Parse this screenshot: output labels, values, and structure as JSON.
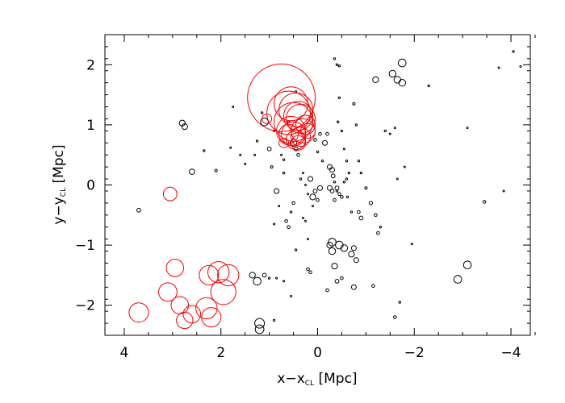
{
  "chart_data": {
    "type": "scatter",
    "title": "",
    "xlabel": {
      "main": "x−x",
      "sub": "CL",
      "unit": " [Mpc]"
    },
    "ylabel": {
      "main": "y−y",
      "sub": "CL",
      "unit": " [Mpc]"
    },
    "xlim": [
      4.4,
      -4.4
    ],
    "ylim": [
      -2.5,
      2.5
    ],
    "x_ticks": [
      4,
      2,
      0,
      -2,
      -4
    ],
    "x_tick_labels": [
      "4",
      "2",
      "0",
      "−2",
      "−4"
    ],
    "y_ticks": [
      -2,
      -1,
      0,
      1,
      2
    ],
    "y_tick_labels": [
      "−2",
      "−1",
      "0",
      "1",
      "2"
    ],
    "grid": false,
    "legend": "none",
    "colors": {
      "black_series": "#000000",
      "red_series": "#ff0000"
    },
    "series": [
      {
        "color": "#000000",
        "points": [
          [
            3.7,
            -0.42,
            0.04
          ],
          [
            2.8,
            1.03,
            0.06
          ],
          [
            2.75,
            0.97,
            0.06
          ],
          [
            2.6,
            0.22,
            0.055
          ],
          [
            2.35,
            0.57,
            0.02
          ],
          [
            2.1,
            0.24,
            0.025
          ],
          [
            1.8,
            0.62,
            0.01
          ],
          [
            1.75,
            1.3,
            0.01
          ],
          [
            1.6,
            0.5,
            0.01
          ],
          [
            1.5,
            0.35,
            0.01
          ],
          [
            1.3,
            0.5,
            0.01
          ],
          [
            1.15,
            1.2,
            0.02
          ],
          [
            1.0,
            0.6,
            0.04
          ],
          [
            0.95,
            0.3,
            0.025
          ],
          [
            0.9,
            0.9,
            0.015
          ],
          [
            0.85,
            -0.1,
            0.05
          ],
          [
            0.8,
            -0.35,
            0.01
          ],
          [
            0.75,
            0.5,
            0.01
          ],
          [
            0.7,
            0.2,
            0.02
          ],
          [
            0.65,
            -0.6,
            0.03
          ],
          [
            0.6,
            -0.7,
            0.03
          ],
          [
            0.55,
            -0.45,
            0.02
          ],
          [
            0.5,
            -0.3,
            0.03
          ],
          [
            0.45,
            -1.08,
            0.02
          ],
          [
            0.5,
            0.7,
            0.07
          ],
          [
            0.45,
            0.6,
            0.04
          ],
          [
            0.4,
            0.5,
            0.03
          ],
          [
            0.35,
            0.1,
            0.02
          ],
          [
            0.3,
            0.2,
            0.01
          ],
          [
            0.25,
            0.0,
            0.01
          ],
          [
            0.2,
            -0.15,
            0.01
          ],
          [
            0.15,
            0.1,
            0.05
          ],
          [
            0.1,
            -0.2,
            0.06
          ],
          [
            0.05,
            -0.1,
            0.04
          ],
          [
            0.0,
            -0.25,
            0.03
          ],
          [
            -0.05,
            -0.05,
            0.05
          ],
          [
            -0.1,
            0.4,
            0.02
          ],
          [
            -0.15,
            0.7,
            0.05
          ],
          [
            -0.2,
            0.85,
            0.03
          ],
          [
            -0.25,
            0.3,
            0.05
          ],
          [
            -0.3,
            0.25,
            0.05
          ],
          [
            -0.32,
            0.15,
            0.04
          ],
          [
            -0.35,
            0.05,
            0.02
          ],
          [
            -0.4,
            -0.1,
            0.02
          ],
          [
            -0.42,
            1.05,
            0.02
          ],
          [
            -0.45,
            1.45,
            0.02
          ],
          [
            -0.5,
            0.9,
            0.02
          ],
          [
            -0.55,
            0.6,
            0.015
          ],
          [
            -0.6,
            0.4,
            0.02
          ],
          [
            -0.62,
            -0.2,
            0.02
          ],
          [
            -0.65,
            0.2,
            0.02
          ],
          [
            -0.7,
            -0.45,
            0.02
          ],
          [
            -0.3,
            -0.1,
            0.04
          ],
          [
            -0.25,
            -0.05,
            0.05
          ],
          [
            -0.35,
            -0.25,
            0.03
          ],
          [
            -0.4,
            -0.05,
            0.04
          ],
          [
            -0.45,
            -0.15,
            0.03
          ],
          [
            -0.5,
            -0.2,
            0.03
          ],
          [
            -0.55,
            0.05,
            0.02
          ],
          [
            -0.6,
            0.1,
            0.02
          ],
          [
            -0.75,
            1.35,
            0.025
          ],
          [
            -0.8,
            1.0,
            0.02
          ],
          [
            -0.85,
            0.4,
            0.02
          ],
          [
            -0.9,
            0.2,
            0.02
          ],
          [
            -1.0,
            -0.05,
            0.025
          ],
          [
            -1.1,
            -0.3,
            0.035
          ],
          [
            -1.2,
            -0.5,
            0.03
          ],
          [
            -1.25,
            -0.8,
            0.03
          ],
          [
            -1.3,
            -0.7,
            0.02
          ],
          [
            -1.4,
            0.9,
            0.02
          ],
          [
            -1.5,
            0.85,
            0.01
          ],
          [
            -1.6,
            0.95,
            0.01
          ],
          [
            -1.65,
            0.1,
            0.01
          ],
          [
            -1.8,
            0.3,
            0.01
          ],
          [
            -0.3,
            -0.95,
            0.08
          ],
          [
            -0.45,
            -1.0,
            0.08
          ],
          [
            -0.55,
            -1.05,
            0.07
          ],
          [
            -0.7,
            -1.15,
            0.06
          ],
          [
            -0.75,
            -1.05,
            0.05
          ],
          [
            -0.8,
            -1.25,
            0.05
          ],
          [
            -0.3,
            -1.1,
            0.07
          ],
          [
            -0.25,
            -1.0,
            0.06
          ],
          [
            -0.35,
            -1.35,
            0.06
          ],
          [
            -0.75,
            -1.7,
            0.05
          ],
          [
            -0.4,
            -1.6,
            0.04
          ],
          [
            -0.5,
            -1.55,
            0.03
          ],
          [
            -0.2,
            -1.75,
            0.03
          ],
          [
            0.2,
            -1.4,
            0.03
          ],
          [
            0.15,
            -1.45,
            0.03
          ],
          [
            -0.9,
            -0.55,
            0.04
          ],
          [
            -0.85,
            -0.45,
            0.03
          ],
          [
            0.45,
            1.55,
            0.02
          ],
          [
            1.0,
            -1.55,
            0.02
          ],
          [
            0.85,
            -1.55,
            0.015
          ],
          [
            0.7,
            -1.6,
            0.01
          ],
          [
            0.55,
            -1.85,
            0.01
          ],
          [
            1.1,
            -1.5,
            0.04
          ],
          [
            1.25,
            -1.6,
            0.08
          ],
          [
            1.35,
            -1.5,
            0.06
          ],
          [
            1.2,
            -2.3,
            0.1
          ],
          [
            1.2,
            -2.4,
            0.09
          ],
          [
            0.9,
            -2.25,
            0.02
          ],
          [
            -1.15,
            -1.68,
            0.03
          ],
          [
            -1.6,
            -2.2,
            0.03
          ],
          [
            -1.7,
            -1.95,
            0.02
          ],
          [
            -0.35,
            2.1,
            0.02
          ],
          [
            -0.4,
            2.0,
            0.02
          ],
          [
            -0.45,
            1.98,
            0.02
          ],
          [
            -1.2,
            1.75,
            0.06
          ],
          [
            -1.55,
            1.85,
            0.07
          ],
          [
            -1.65,
            1.75,
            0.07
          ],
          [
            -1.75,
            1.7,
            0.07
          ],
          [
            -1.75,
            2.03,
            0.08
          ],
          [
            -2.3,
            1.65,
            0.02
          ],
          [
            -3.1,
            0.95,
            0.01
          ],
          [
            -3.45,
            -0.28,
            0.03
          ],
          [
            -3.75,
            1.95,
            0.01
          ],
          [
            -3.85,
            -0.1,
            0.015
          ],
          [
            -4.05,
            2.22,
            0.02
          ],
          [
            -4.2,
            1.97,
            0.01
          ],
          [
            -1.95,
            -0.98,
            0.01
          ],
          [
            -3.1,
            -1.33,
            0.08
          ],
          [
            -2.9,
            -1.57,
            0.08
          ],
          [
            0.3,
            -0.55,
            0.01
          ],
          [
            0.1,
            -0.35,
            0.01
          ],
          [
            0.0,
            0.55,
            0.02
          ],
          [
            0.05,
            0.75,
            0.03
          ],
          [
            -0.05,
            0.85,
            0.03
          ],
          [
            0.6,
            1.05,
            0.02
          ],
          [
            1.1,
            1.05,
            0.08
          ],
          [
            0.7,
            0.42,
            0.02
          ],
          [
            0.9,
            -0.65,
            0.015
          ],
          [
            1.25,
            0.73,
            0.02
          ],
          [
            0.25,
            -0.6,
            0.01
          ],
          [
            0.2,
            -0.9,
            0.01
          ]
        ]
      },
      {
        "color": "#ff0000",
        "points": [
          [
            0.75,
            1.45,
            0.7
          ],
          [
            0.6,
            1.2,
            0.45
          ],
          [
            0.5,
            1.05,
            0.4
          ],
          [
            0.45,
            1.25,
            0.35
          ],
          [
            0.55,
            1.35,
            0.35
          ],
          [
            0.4,
            1.15,
            0.3
          ],
          [
            0.35,
            1.1,
            0.3
          ],
          [
            0.5,
            0.85,
            0.25
          ],
          [
            0.45,
            0.75,
            0.2
          ],
          [
            0.35,
            0.8,
            0.2
          ],
          [
            0.3,
            0.9,
            0.25
          ],
          [
            0.55,
            0.9,
            0.3
          ],
          [
            0.6,
            0.85,
            0.2
          ],
          [
            0.25,
            1.0,
            0.2
          ],
          [
            0.4,
            0.7,
            0.15
          ],
          [
            0.2,
            0.9,
            0.15
          ],
          [
            1.05,
            1.1,
            0.1
          ],
          [
            0.7,
            0.7,
            0.1
          ],
          [
            3.05,
            -0.15,
            0.14
          ],
          [
            3.7,
            -2.12,
            0.2
          ],
          [
            2.95,
            -1.38,
            0.18
          ],
          [
            3.1,
            -1.78,
            0.19
          ],
          [
            2.85,
            -2.0,
            0.18
          ],
          [
            2.75,
            -2.25,
            0.17
          ],
          [
            2.6,
            -2.15,
            0.18
          ],
          [
            2.3,
            -2.05,
            0.22
          ],
          [
            2.2,
            -2.2,
            0.2
          ],
          [
            2.05,
            -1.45,
            0.22
          ],
          [
            1.95,
            -1.78,
            0.26
          ],
          [
            1.85,
            -1.5,
            0.22
          ],
          [
            2.25,
            -1.5,
            0.2
          ]
        ]
      }
    ]
  }
}
